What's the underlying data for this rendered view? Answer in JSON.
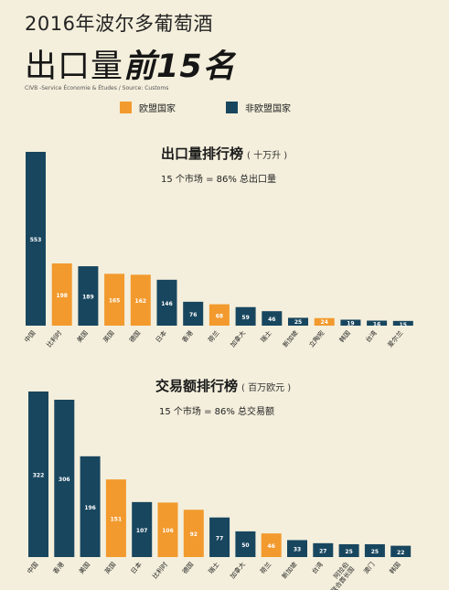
{
  "header": {
    "title_line1": "2016年波尔多葡萄酒",
    "title_line2_regular": "出口量",
    "title_line2_bold": "前15名",
    "source": "CIVB -Service Économie & Études / Source: Customs"
  },
  "legend": {
    "eu_label": "欧盟国家",
    "non_eu_label": "非欧盟国家"
  },
  "colors": {
    "eu": "#f29a2e",
    "non_eu": "#18465f",
    "background": "#f4efdc"
  },
  "chart_data": [
    {
      "type": "bar",
      "title": "出口量排行榜",
      "unit": "( 十万升 )",
      "subtitle": "15 个市场 = 86% 总出口量",
      "categories": [
        "中国",
        "比利时",
        "美国",
        "英国",
        "德国",
        "日本",
        "香港",
        "荷兰",
        "加拿大",
        "瑞士",
        "新加坡",
        "立陶宛",
        "韩国",
        "台湾",
        "爱尔兰"
      ],
      "values": [
        553,
        198,
        189,
        165,
        162,
        146,
        76,
        68,
        59,
        46,
        25,
        24,
        19,
        16,
        15
      ],
      "groups": [
        "non_eu",
        "eu",
        "non_eu",
        "eu",
        "eu",
        "non_eu",
        "non_eu",
        "eu",
        "non_eu",
        "non_eu",
        "non_eu",
        "eu",
        "non_eu",
        "non_eu",
        "non_eu"
      ]
    },
    {
      "type": "bar",
      "title": "交易额排行榜",
      "unit": "( 百万欧元 )",
      "subtitle": "15 个市场 = 86% 总交易额",
      "categories": [
        "中国",
        "香港",
        "美国",
        "英国",
        "日本",
        "比利时",
        "德国",
        "瑞士",
        "加拿大",
        "荷兰",
        "新加坡",
        "台湾",
        "阿拉伯联合酋长国",
        "澳门",
        "韩国"
      ],
      "category_lines": [
        [
          "中国"
        ],
        [
          "香港"
        ],
        [
          "美国"
        ],
        [
          "英国"
        ],
        [
          "日本"
        ],
        [
          "比利时"
        ],
        [
          "德国"
        ],
        [
          "瑞士"
        ],
        [
          "加拿大"
        ],
        [
          "荷兰"
        ],
        [
          "新加坡"
        ],
        [
          "台湾"
        ],
        [
          "阿拉伯",
          "联合酋长国"
        ],
        [
          "澳门"
        ],
        [
          "韩国"
        ]
      ],
      "values": [
        322,
        306,
        196,
        151,
        107,
        106,
        92,
        77,
        50,
        46,
        33,
        27,
        25,
        25,
        22
      ],
      "groups": [
        "non_eu",
        "non_eu",
        "non_eu",
        "eu",
        "non_eu",
        "eu",
        "eu",
        "non_eu",
        "non_eu",
        "eu",
        "non_eu",
        "non_eu",
        "non_eu",
        "non_eu",
        "non_eu"
      ]
    }
  ]
}
